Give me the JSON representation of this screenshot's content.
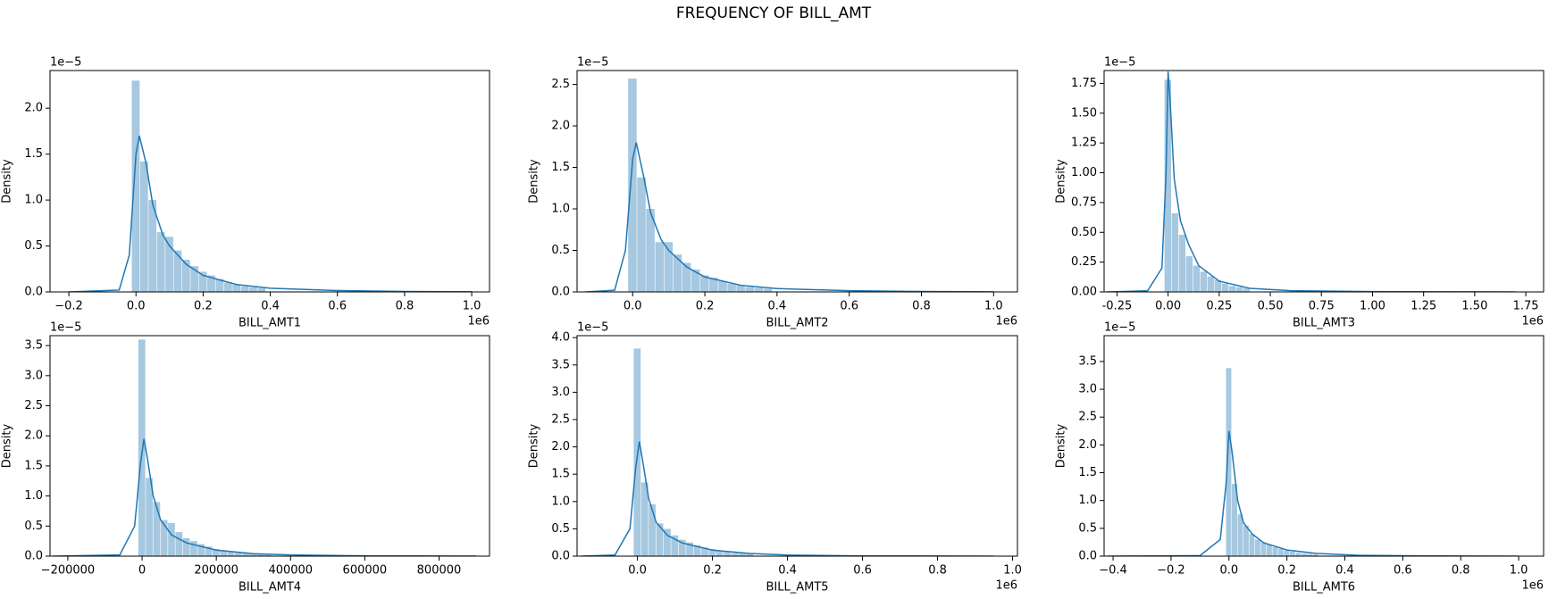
{
  "title": "FREQUENCY OF BILL_AMT",
  "chart_data": [
    {
      "type": "histogram",
      "xlabel": "BILL_AMT1",
      "ylabel": "Density",
      "y_offset_label": "1e−5",
      "x_offset_label": "1e6",
      "bins": [
        -0.0125,
        0.0125,
        0.0375,
        0.0625,
        0.0875,
        0.1125,
        0.1375,
        0.1625,
        0.1875,
        0.2125,
        0.2375,
        0.2625,
        0.2875,
        0.3125,
        0.3375,
        0.3625,
        0.3875
      ],
      "values": [
        2.3,
        1.42,
        1.0,
        0.65,
        0.6,
        0.45,
        0.35,
        0.28,
        0.22,
        0.18,
        0.14,
        0.1,
        0.08,
        0.06,
        0.05,
        0.04
      ],
      "color": "#a6c8e0",
      "kde": {
        "x": [
          -0.2,
          -0.05,
          -0.02,
          0,
          0.01,
          0.03,
          0.05,
          0.08,
          0.1,
          0.15,
          0.2,
          0.3,
          0.4,
          0.6,
          0.8,
          1.0
        ],
        "values": [
          0,
          0.02,
          0.4,
          1.5,
          1.7,
          1.4,
          0.95,
          0.62,
          0.5,
          0.3,
          0.18,
          0.08,
          0.04,
          0.015,
          0.005,
          0.002
        ],
        "color": "#1f77b4"
      },
      "xlim": [
        -0.256,
        1.053
      ],
      "ylim": [
        0,
        2.41
      ],
      "xticks": [
        {
          "value": -0.2,
          "label": "−0.2"
        },
        {
          "value": 0,
          "label": "0.0"
        },
        0.2,
        0.4,
        0.6,
        0.8,
        {
          "value": 1,
          "label": "1.0"
        }
      ],
      "yticks": [
        {
          "value": 0,
          "label": "0.0"
        },
        0.5,
        {
          "value": 1,
          "label": "1.0"
        },
        1.5,
        {
          "value": 2,
          "label": "2.0"
        }
      ]
    },
    {
      "type": "histogram",
      "xlabel": "BILL_AMT2",
      "ylabel": "Density",
      "y_offset_label": "1e−5",
      "x_offset_label": "1e6",
      "bins": [
        -0.0125,
        0.0125,
        0.0375,
        0.0625,
        0.0875,
        0.1125,
        0.1375,
        0.1625,
        0.1875,
        0.2125,
        0.2375,
        0.2625,
        0.2875,
        0.3125,
        0.3375,
        0.3625,
        0.3875
      ],
      "values": [
        2.57,
        1.38,
        1.0,
        0.6,
        0.6,
        0.45,
        0.35,
        0.27,
        0.2,
        0.17,
        0.13,
        0.1,
        0.08,
        0.06,
        0.05,
        0.04
      ],
      "color": "#a6c8e0",
      "kde": {
        "x": [
          -0.13,
          -0.05,
          -0.02,
          0,
          0.01,
          0.03,
          0.05,
          0.08,
          0.1,
          0.15,
          0.2,
          0.3,
          0.4,
          0.6,
          0.8,
          1.0
        ],
        "values": [
          0,
          0.02,
          0.5,
          1.6,
          1.8,
          1.4,
          0.95,
          0.62,
          0.5,
          0.3,
          0.18,
          0.08,
          0.04,
          0.015,
          0.005,
          0.002
        ],
        "color": "#1f77b4"
      },
      "xlim": [
        -0.154,
        1.066
      ],
      "ylim": [
        0,
        2.667
      ],
      "xticks": [
        {
          "value": 0,
          "label": "0.0"
        },
        0.2,
        0.4,
        0.6,
        0.8,
        {
          "value": 1,
          "label": "1.0"
        }
      ],
      "yticks": [
        {
          "value": 0,
          "label": "0.0"
        },
        0.5,
        {
          "value": 1,
          "label": "1.0"
        },
        1.5,
        {
          "value": 2,
          "label": "2.0"
        },
        2.5
      ]
    },
    {
      "type": "histogram",
      "xlabel": "BILL_AMT3",
      "ylabel": "Density",
      "y_offset_label": "1e−5",
      "x_offset_label": "1e6",
      "bins": [
        -0.0175,
        0.0175,
        0.0525,
        0.0875,
        0.1225,
        0.1575,
        0.1925,
        0.2275,
        0.2625,
        0.2975,
        0.3325,
        0.3675,
        0.4025
      ],
      "values": [
        1.78,
        0.66,
        0.48,
        0.3,
        0.22,
        0.17,
        0.13,
        0.1,
        0.07,
        0.05,
        0.04,
        0.03
      ],
      "color": "#a6c8e0",
      "kde": {
        "x": [
          -0.3,
          -0.1,
          -0.03,
          -0.01,
          0,
          0.01,
          0.03,
          0.06,
          0.1,
          0.15,
          0.25,
          0.4,
          0.6,
          1.0,
          1.4,
          1.7
        ],
        "values": [
          0,
          0.01,
          0.2,
          1.0,
          1.85,
          1.6,
          0.95,
          0.6,
          0.4,
          0.22,
          0.09,
          0.03,
          0.01,
          0.003,
          0.001,
          0
        ],
        "color": "#1f77b4"
      },
      "xlim": [
        -0.313,
        1.837
      ],
      "ylim": [
        0,
        1.858
      ],
      "xticks": [
        -0.25,
        {
          "value": 0,
          "label": "0.00"
        },
        0.25,
        {
          "value": 0.5,
          "label": "0.50"
        },
        0.75,
        {
          "value": 1,
          "label": "1.00"
        },
        1.25,
        {
          "value": 1.5,
          "label": "1.50"
        },
        1.75
      ],
      "yticks": [
        {
          "value": 0,
          "label": "0.00"
        },
        0.25,
        {
          "value": 0.5,
          "label": "0.50"
        },
        0.75,
        {
          "value": 1,
          "label": "1.00"
        },
        1.25,
        {
          "value": 1.5,
          "label": "1.50"
        },
        1.75
      ]
    },
    {
      "type": "histogram",
      "xlabel": "BILL_AMT4",
      "ylabel": "Density",
      "y_offset_label": "1e−5",
      "bins": [
        -10000,
        10000,
        30000,
        50000,
        70000,
        90000,
        110000,
        130000,
        150000,
        170000,
        190000,
        210000,
        230000,
        250000,
        270000,
        290000,
        310000,
        330000,
        350000
      ],
      "values": [
        3.6,
        1.3,
        0.9,
        0.6,
        0.55,
        0.4,
        0.3,
        0.25,
        0.2,
        0.16,
        0.12,
        0.1,
        0.08,
        0.06,
        0.05,
        0.04,
        0.03,
        0.02
      ],
      "color": "#a6c8e0",
      "kde": {
        "x": [
          -240000,
          -60000,
          -20000,
          -5000,
          5000,
          15000,
          30000,
          50000,
          80000,
          120000,
          200000,
          300000,
          400000,
          600000,
          900000
        ],
        "values": [
          0,
          0.02,
          0.5,
          1.5,
          1.95,
          1.6,
          1.0,
          0.6,
          0.35,
          0.22,
          0.1,
          0.04,
          0.02,
          0.005,
          0.001
        ],
        "color": "#1f77b4"
      },
      "xlim": [
        -248000,
        936000
      ],
      "ylim": [
        0,
        3.665
      ],
      "xticks": [
        {
          "value": -200000,
          "label": "−200000"
        },
        0,
        200000,
        400000,
        600000,
        800000
      ],
      "yticks": [
        {
          "value": 0,
          "label": "0.0"
        },
        0.5,
        {
          "value": 1,
          "label": "1.0"
        },
        1.5,
        {
          "value": 2,
          "label": "2.0"
        },
        2.5,
        {
          "value": 3,
          "label": "3.0"
        },
        3.5
      ]
    },
    {
      "type": "histogram",
      "xlabel": "BILL_AMT5",
      "ylabel": "Density",
      "y_offset_label": "1e−5",
      "x_offset_label": "1e6",
      "bins": [
        -0.01,
        0.01,
        0.03,
        0.05,
        0.07,
        0.09,
        0.11,
        0.13,
        0.15,
        0.17,
        0.19,
        0.21,
        0.23,
        0.25,
        0.27,
        0.29,
        0.31
      ],
      "values": [
        3.8,
        1.35,
        0.95,
        0.6,
        0.5,
        0.38,
        0.3,
        0.25,
        0.2,
        0.16,
        0.13,
        0.1,
        0.08,
        0.06,
        0.05,
        0.04
      ],
      "color": "#a6c8e0",
      "kde": {
        "x": [
          -0.15,
          -0.06,
          -0.02,
          -0.005,
          0.005,
          0.015,
          0.03,
          0.05,
          0.08,
          0.12,
          0.2,
          0.3,
          0.4,
          0.6,
          0.95
        ],
        "values": [
          0,
          0.02,
          0.5,
          1.6,
          2.1,
          1.7,
          1.05,
          0.62,
          0.38,
          0.24,
          0.11,
          0.05,
          0.02,
          0.005,
          0.001
        ],
        "color": "#1f77b4"
      },
      "xlim": [
        -0.161,
        1.013
      ],
      "ylim": [
        0,
        4.036
      ],
      "xticks": [
        {
          "value": 0,
          "label": "0.0"
        },
        0.2,
        0.4,
        0.6,
        0.8,
        {
          "value": 1,
          "label": "1.0"
        }
      ],
      "yticks": [
        {
          "value": 0,
          "label": "0.0"
        },
        0.5,
        {
          "value": 1,
          "label": "1.0"
        },
        1.5,
        {
          "value": 2,
          "label": "2.0"
        },
        2.5,
        {
          "value": 3,
          "label": "3.0"
        },
        3.5,
        {
          "value": 4,
          "label": "4.0"
        }
      ]
    },
    {
      "type": "histogram",
      "xlabel": "BILL_AMT6",
      "ylabel": "Density",
      "y_offset_label": "1e−5",
      "x_offset_label": "1e6",
      "bins": [
        -0.01,
        0.01,
        0.03,
        0.05,
        0.07,
        0.09,
        0.11,
        0.13,
        0.15,
        0.17,
        0.19,
        0.21,
        0.23,
        0.25,
        0.27,
        0.29,
        0.31
      ],
      "values": [
        3.38,
        1.3,
        0.75,
        0.55,
        0.4,
        0.3,
        0.25,
        0.2,
        0.16,
        0.13,
        0.1,
        0.08,
        0.06,
        0.05,
        0.04,
        0.03
      ],
      "color": "#a6c8e0",
      "kde": {
        "x": [
          -0.42,
          -0.1,
          -0.03,
          -0.01,
          0,
          0.01,
          0.03,
          0.05,
          0.08,
          0.12,
          0.2,
          0.3,
          0.45,
          0.7,
          1.0
        ],
        "values": [
          0,
          0.01,
          0.3,
          1.3,
          2.25,
          1.9,
          1.0,
          0.6,
          0.4,
          0.24,
          0.11,
          0.05,
          0.015,
          0.004,
          0.001
        ],
        "color": "#1f77b4"
      },
      "xlim": [
        -0.431,
        1.086
      ],
      "ylim": [
        0,
        3.964
      ],
      "xticks": [
        {
          "value": -0.4,
          "label": "−0.4"
        },
        {
          "value": -0.2,
          "label": "−0.2"
        },
        {
          "value": 0,
          "label": "0.0"
        },
        0.2,
        0.4,
        0.6,
        0.8,
        {
          "value": 1,
          "label": "1.0"
        }
      ],
      "yticks": [
        {
          "value": 0,
          "label": "0.0"
        },
        0.5,
        {
          "value": 1,
          "label": "1.0"
        },
        1.5,
        {
          "value": 2,
          "label": "2.0"
        },
        2.5,
        {
          "value": 3,
          "label": "3.0"
        },
        3.5
      ]
    }
  ]
}
